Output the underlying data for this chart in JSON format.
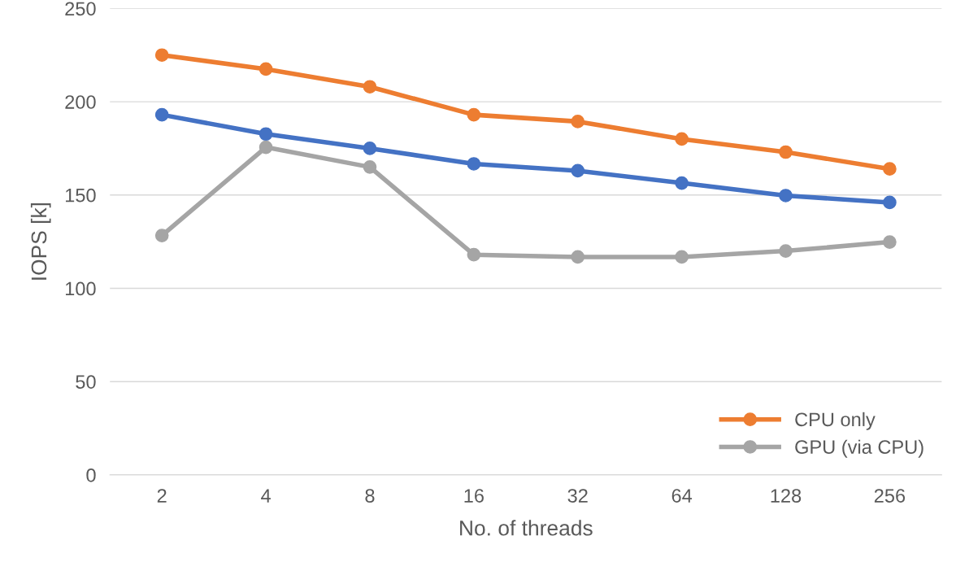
{
  "chart_data": {
    "type": "line",
    "xlabel": "No. of threads",
    "ylabel": "IOPS [k]",
    "categories": [
      "2",
      "4",
      "8",
      "16",
      "32",
      "64",
      "128",
      "256"
    ],
    "series": [
      {
        "color": "#4472c4",
        "values": [
          193,
          182.7,
          175,
          166.7,
          163,
          156.4,
          149.7,
          146
        ]
      },
      {
        "name": "CPU only",
        "color": "#ed7d31",
        "values": [
          225,
          217.5,
          208,
          193,
          189.4,
          180,
          173,
          164
        ]
      },
      {
        "name": "GPU (via CPU)",
        "color": "#a5a5a5",
        "values": [
          128.3,
          175.6,
          165,
          118,
          116.8,
          116.8,
          120,
          124.8
        ]
      }
    ],
    "ylim": [
      0,
      250
    ],
    "yticks": [
      0,
      50,
      100,
      150,
      200,
      250
    ],
    "grid": "y",
    "legend": "lower right",
    "marker": "circle",
    "line_style": "solid"
  }
}
